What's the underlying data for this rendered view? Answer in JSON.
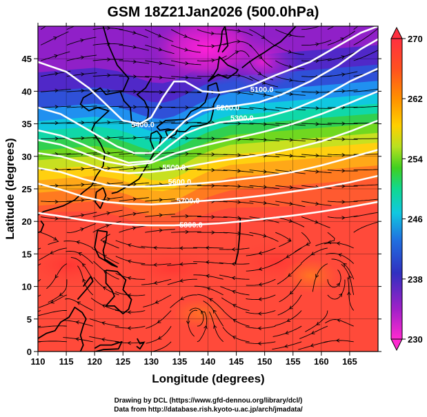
{
  "title": "GSM 18Z21Jan2026 (500.0hPa)",
  "xlabel": "Longitude (degrees)",
  "ylabel": "Latitude  (degrees)",
  "xticks": [
    "110",
    "115",
    "120",
    "125",
    "130",
    "135",
    "140",
    "145",
    "150",
    "155",
    "160",
    "165"
  ],
  "yticks": [
    "0",
    "5",
    "10",
    "15",
    "20",
    "25",
    "30",
    "35",
    "40",
    "45"
  ],
  "xlim": [
    110,
    170
  ],
  "ylim": [
    0,
    50
  ],
  "colorbar": {
    "ticks": [
      "230",
      "238",
      "246",
      "254",
      "262",
      "270"
    ],
    "min": 230,
    "max": 270,
    "colors": [
      "#ff2ad0",
      "#a020c8",
      "#3030c0",
      "#2070e0",
      "#10c8e0",
      "#10d890",
      "#40d020",
      "#b8e020",
      "#ffd000",
      "#ff9000",
      "#ff5020",
      "#ff3040"
    ]
  },
  "contours": [
    {
      "label": "5100.0",
      "lon_label": 149.5,
      "lat_label": 40.2,
      "points": [
        [
          110,
          44.5
        ],
        [
          115,
          43
        ],
        [
          119,
          40.5
        ],
        [
          122,
          38
        ],
        [
          125,
          35.5
        ],
        [
          128,
          35
        ],
        [
          130,
          36
        ],
        [
          132,
          39
        ],
        [
          134,
          41.5
        ],
        [
          136,
          41.5
        ],
        [
          139,
          40
        ],
        [
          142,
          39.8
        ],
        [
          145,
          40.2
        ],
        [
          148,
          41
        ],
        [
          152,
          42.5
        ],
        [
          158,
          44.5
        ],
        [
          163,
          47
        ],
        [
          167,
          49
        ],
        [
          170,
          50
        ]
      ]
    },
    {
      "label": "5200.0",
      "lon_label": 143.5,
      "lat_label": 37.4,
      "points": [
        [
          110,
          37.5
        ],
        [
          114,
          36.5
        ],
        [
          118,
          34.5
        ],
        [
          121,
          33
        ],
        [
          124,
          31.5
        ],
        [
          127,
          30.5
        ],
        [
          130,
          30.5
        ],
        [
          133,
          33
        ],
        [
          136,
          35.5
        ],
        [
          139,
          37
        ],
        [
          142,
          37.5
        ],
        [
          145,
          37.8
        ],
        [
          149,
          38.3
        ],
        [
          153,
          39.5
        ],
        [
          158,
          41.5
        ],
        [
          163,
          44
        ],
        [
          167,
          46.5
        ],
        [
          170,
          48
        ]
      ]
    },
    {
      "label": "5300.0",
      "lon_label": 146,
      "lat_label": 35.8,
      "points": [
        [
          110,
          34
        ],
        [
          114,
          33.2
        ],
        [
          118,
          31.8
        ],
        [
          122,
          30.2
        ],
        [
          126,
          29
        ],
        [
          130,
          29.3
        ],
        [
          133,
          31.5
        ],
        [
          136,
          33.5
        ],
        [
          139,
          34.5
        ],
        [
          142,
          35.2
        ],
        [
          146,
          35.6
        ],
        [
          150,
          36
        ],
        [
          155,
          37.2
        ],
        [
          160,
          39
        ],
        [
          165,
          41.5
        ],
        [
          170,
          43.5
        ]
      ]
    },
    {
      "label": "5400.0",
      "lon_label": 128.5,
      "lat_label": 34.8,
      "points": [
        [
          110,
          32.5
        ],
        [
          114,
          31.8
        ],
        [
          118,
          30.5
        ],
        [
          122,
          29.2
        ],
        [
          126,
          28.6
        ],
        [
          130,
          29
        ],
        [
          134,
          30.4
        ],
        [
          138,
          31.4
        ],
        [
          142,
          32.2
        ],
        [
          146,
          33
        ],
        [
          150,
          33.8
        ],
        [
          155,
          35
        ],
        [
          160,
          36.5
        ],
        [
          165,
          38.2
        ],
        [
          170,
          40
        ]
      ]
    },
    {
      "label": "5500.0",
      "lon_label": 134,
      "lat_label": 28.2,
      "points": [
        [
          110,
          30.5
        ],
        [
          114,
          30
        ],
        [
          118,
          29
        ],
        [
          122,
          27.8
        ],
        [
          126,
          27.4
        ],
        [
          130,
          27.6
        ],
        [
          134,
          28
        ],
        [
          138,
          28.7
        ],
        [
          142,
          29.3
        ],
        [
          146,
          29.8
        ],
        [
          150,
          30.3
        ],
        [
          155,
          31.2
        ],
        [
          160,
          32.3
        ],
        [
          165,
          33.8
        ],
        [
          170,
          35.5
        ]
      ]
    },
    {
      "label": "5600.0",
      "lon_label": 135,
      "lat_label": 26,
      "points": [
        [
          110,
          28.2
        ],
        [
          114,
          27.6
        ],
        [
          118,
          26.5
        ],
        [
          122,
          25.6
        ],
        [
          126,
          25.3
        ],
        [
          130,
          25.4
        ],
        [
          134,
          25.6
        ],
        [
          138,
          25.8
        ],
        [
          142,
          26.1
        ],
        [
          146,
          26.5
        ],
        [
          150,
          26.9
        ],
        [
          155,
          27.6
        ],
        [
          160,
          28.6
        ],
        [
          165,
          29.8
        ],
        [
          170,
          31
        ]
      ]
    },
    {
      "label": "5700.0",
      "lon_label": 136.5,
      "lat_label": 23.1,
      "points": [
        [
          110,
          25.8
        ],
        [
          114,
          24.9
        ],
        [
          118,
          23.8
        ],
        [
          122,
          23
        ],
        [
          126,
          22.7
        ],
        [
          130,
          22.6
        ],
        [
          134,
          22.8
        ],
        [
          138,
          23.1
        ],
        [
          142,
          23.3
        ],
        [
          146,
          23.6
        ],
        [
          150,
          24
        ],
        [
          155,
          24.6
        ],
        [
          160,
          25.2
        ],
        [
          165,
          26
        ],
        [
          170,
          27
        ]
      ]
    },
    {
      "label": "5800.0",
      "lon_label": 137,
      "lat_label": 19.4,
      "points": [
        [
          110,
          21.3
        ],
        [
          114,
          20.8
        ],
        [
          118,
          20.2
        ],
        [
          122,
          19.8
        ],
        [
          126,
          19.5
        ],
        [
          130,
          19.4
        ],
        [
          134,
          19.4
        ],
        [
          138,
          19.5
        ],
        [
          142,
          19.7
        ],
        [
          146,
          20
        ],
        [
          150,
          20.4
        ],
        [
          155,
          20.9
        ],
        [
          160,
          21.5
        ],
        [
          165,
          22.2
        ],
        [
          170,
          23
        ]
      ]
    }
  ],
  "credit_line1": "Drawing by DCL (https://www.gfd-dennou.org/library/dcl/)",
  "credit_line2": "Data from http://database.rish.kyoto-u.ac.jp/arch/jmadata/"
}
